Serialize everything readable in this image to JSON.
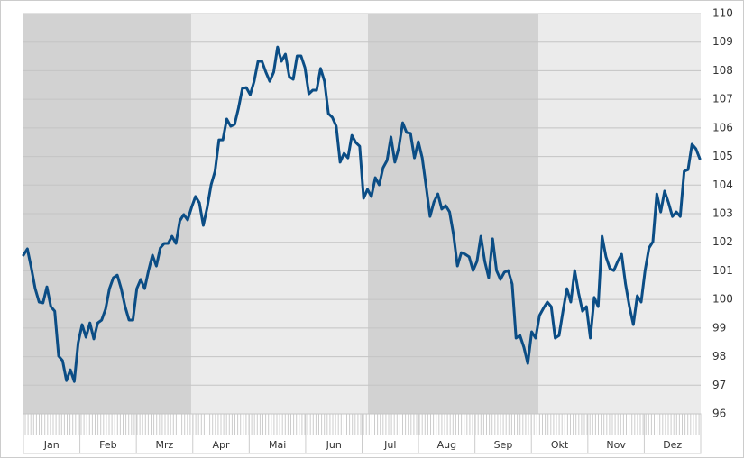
{
  "chart_data": {
    "type": "line",
    "month_labels": [
      "Jan",
      "Feb",
      "Mrz",
      "Apr",
      "Mai",
      "Jun",
      "Jul",
      "Aug",
      "Sep",
      "Okt",
      "Nov",
      "Dez"
    ],
    "series": [
      {
        "color": "#0b4d85",
        "values": [
          101.55,
          101.77,
          101.11,
          100.38,
          99.91,
          99.88,
          100.44,
          99.75,
          99.59,
          98.02,
          97.86,
          97.16,
          97.54,
          97.13,
          98.49,
          99.12,
          98.68,
          99.18,
          98.62,
          99.18,
          99.28,
          99.66,
          100.38,
          100.76,
          100.85,
          100.38,
          99.75,
          99.28,
          99.28,
          100.38,
          100.7,
          100.38,
          101.01,
          101.55,
          101.17,
          101.8,
          101.96,
          101.96,
          102.21,
          101.96,
          102.75,
          102.97,
          102.78,
          103.22,
          103.6,
          103.38,
          102.59,
          103.22,
          104.01,
          104.48,
          105.58,
          105.58,
          106.31,
          106.06,
          106.12,
          106.69,
          107.38,
          107.41,
          107.16,
          107.63,
          108.33,
          108.33,
          107.95,
          107.63,
          107.95,
          108.83,
          108.33,
          108.58,
          107.79,
          107.7,
          108.52,
          108.52,
          108.11,
          107.19,
          107.32,
          107.32,
          108.08,
          107.63,
          106.5,
          106.37,
          106.06,
          104.8,
          105.11,
          104.95,
          105.74,
          105.49,
          105.36,
          103.54,
          103.85,
          103.6,
          104.26,
          104.01,
          104.61,
          104.86,
          105.68,
          104.8,
          105.3,
          106.18,
          105.84,
          105.81,
          104.95,
          105.52,
          104.95,
          103.95,
          102.9,
          103.41,
          103.69,
          103.16,
          103.28,
          103.06,
          102.27,
          101.17,
          101.64,
          101.58,
          101.49,
          101.01,
          101.33,
          102.21,
          101.33,
          100.76,
          102.12,
          101.01,
          100.7,
          100.95,
          101.01,
          100.54,
          98.65,
          98.74,
          98.33,
          97.76,
          98.87,
          98.65,
          99.44,
          99.69,
          99.91,
          99.75,
          98.65,
          98.74,
          99.59,
          100.38,
          99.91,
          101.01,
          100.22,
          99.59,
          99.75,
          98.65,
          100.07,
          99.75,
          102.21,
          101.49,
          101.08,
          101.01,
          101.33,
          101.58,
          100.54,
          99.75,
          99.12,
          100.13,
          99.91,
          101.01,
          101.8,
          102.02,
          103.69,
          103.06,
          103.79,
          103.38,
          102.9,
          103.06,
          102.9,
          104.48,
          104.54,
          105.43,
          105.27,
          104.92
        ]
      }
    ],
    "ylim": [
      96,
      110
    ],
    "yticks": [
      96,
      97,
      98,
      99,
      100,
      101,
      102,
      103,
      104,
      105,
      106,
      107,
      108,
      109,
      110
    ],
    "grid": true,
    "y_axis_side": "right"
  }
}
